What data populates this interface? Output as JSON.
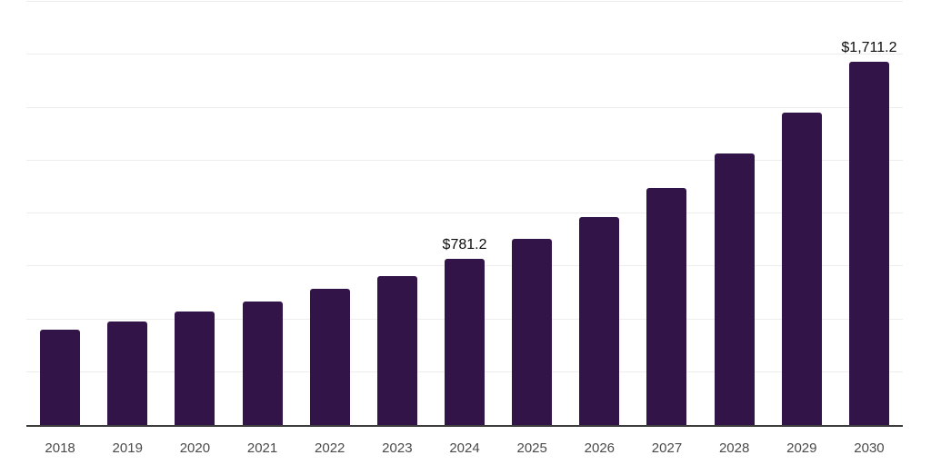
{
  "chart_data": {
    "type": "bar",
    "title": "",
    "xlabel": "",
    "ylabel": "",
    "categories": [
      "2018",
      "2019",
      "2020",
      "2021",
      "2022",
      "2023",
      "2024",
      "2025",
      "2026",
      "2027",
      "2028",
      "2029",
      "2030"
    ],
    "values": [
      448,
      487,
      534,
      581,
      641,
      701,
      781.2,
      876,
      979,
      1115,
      1278,
      1470,
      1711.2
    ],
    "point_labels": [
      "",
      "",
      "",
      "",
      "",
      "",
      "$781.2",
      "",
      "",
      "",
      "",
      "",
      "$1,711.2"
    ],
    "ylim": [
      0,
      2000
    ],
    "gridline_step": 250,
    "grid": true,
    "legend": false,
    "y_axis_labels_visible": false,
    "colors": {
      "bar": "#331449",
      "gridline": "#ededed",
      "axis_line": "#3d3d3d",
      "tick_label": "#4a4a4a",
      "value_label": "#0d0d0d",
      "background": "#ffffff"
    }
  }
}
